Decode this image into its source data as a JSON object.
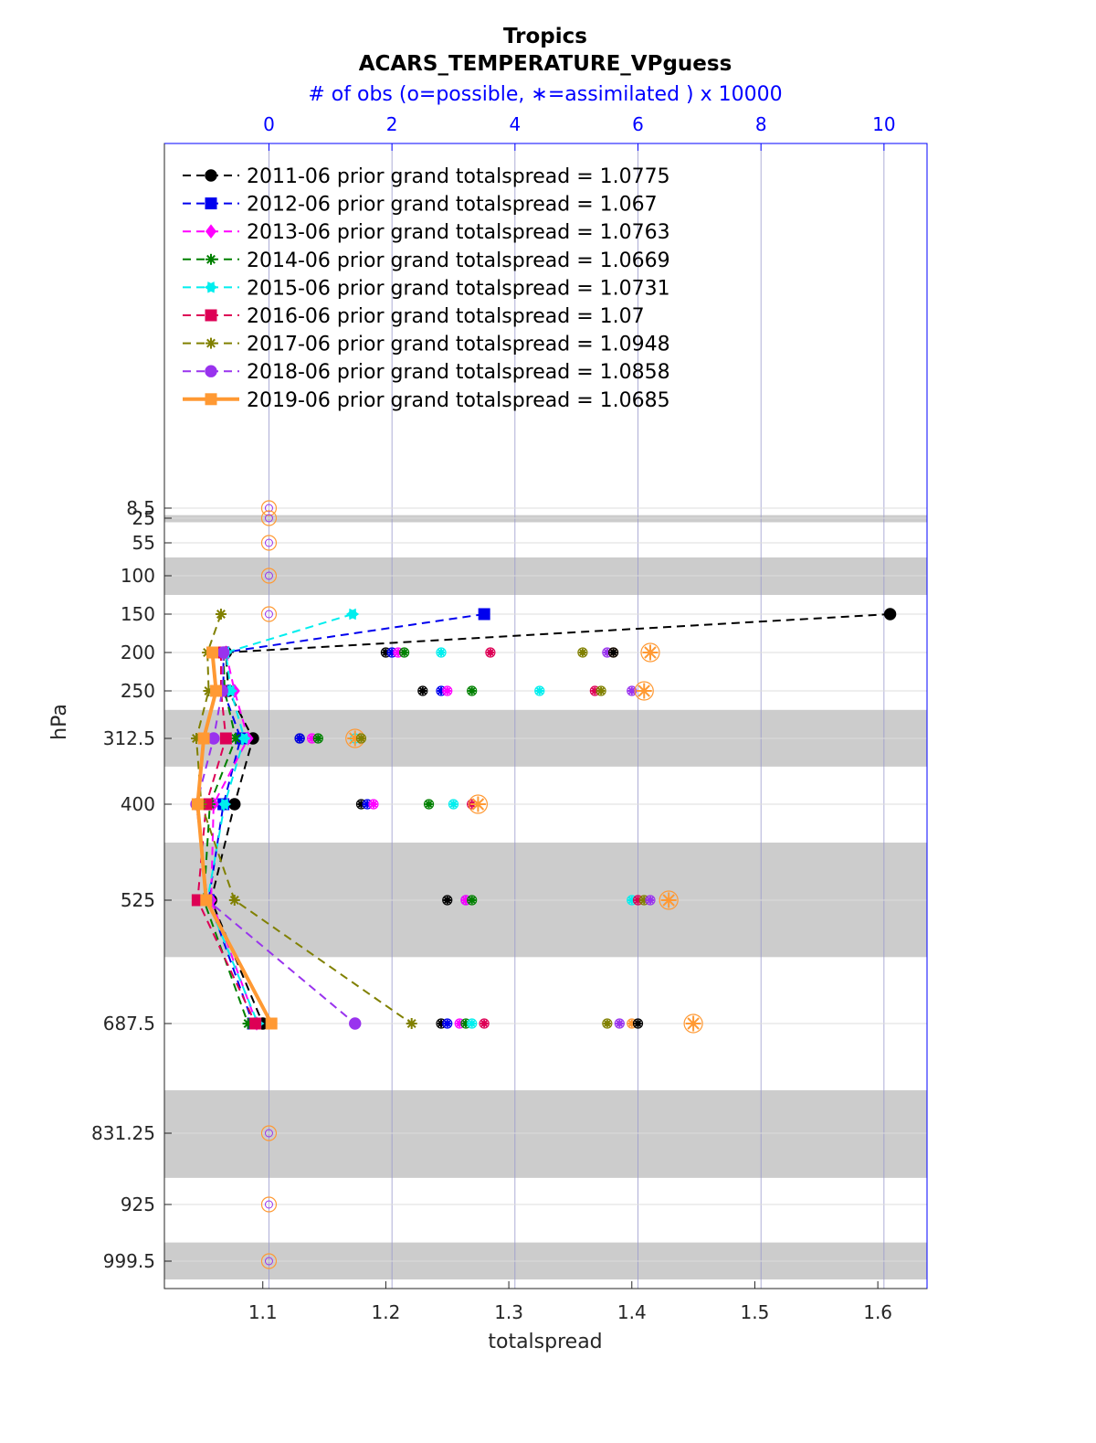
{
  "chart_data": {
    "type": "line",
    "title": "Tropics",
    "subtitle": "ACARS_TEMPERATURE_VPguess",
    "top_axis_label": "# of obs (o=possible, ∗=assimilated ) x 10000",
    "xlabel": "totalspread",
    "ylabel": "hPa",
    "xlim": [
      1.02,
      1.64
    ],
    "xticks": [
      1.1,
      1.2,
      1.3,
      1.4,
      1.5,
      1.6
    ],
    "xtick_labels": [
      "1.1",
      "1.2",
      "1.3",
      "1.4",
      "1.5",
      "1.6"
    ],
    "top_xlim": [
      -1.7,
      10.7
    ],
    "top_xticks": [
      0,
      2,
      4,
      6,
      8,
      10
    ],
    "top_xtick_labels": [
      "0",
      "2",
      "4",
      "6",
      "8",
      "10"
    ],
    "ylevels": [
      8.5,
      25,
      55,
      100,
      150,
      200,
      250,
      312.5,
      400,
      525,
      687.5,
      831.25,
      925,
      999.5
    ],
    "ytick_labels": [
      "8.5",
      "25",
      "55",
      "100",
      "150",
      "200",
      "250",
      "312.5",
      "400",
      "525",
      "687.5",
      "831.25",
      "925",
      "999.5"
    ],
    "shaded_bands": [
      [
        20,
        30
      ],
      [
        75,
        125
      ],
      [
        275,
        350
      ],
      [
        450,
        600
      ],
      [
        775,
        890
      ],
      [
        975,
        1050
      ]
    ],
    "plevels_data": [
      150,
      200,
      250,
      312.5,
      400,
      525,
      687.5
    ],
    "legend_position": "top-left",
    "series": [
      {
        "name": "2011-06",
        "label": "2011-06 prior grand totalspread = 1.0775",
        "color": "#000000",
        "marker": "circle",
        "linestyle": "dashed",
        "width": 2,
        "values": [
          1.61,
          1.07,
          1.072,
          1.092,
          1.077,
          1.058,
          1.1
        ]
      },
      {
        "name": "2012-06",
        "label": "2012-06 prior grand totalspread = 1.067",
        "color": "#0000ee",
        "marker": "square",
        "linestyle": "dashed",
        "width": 2,
        "values": [
          1.28,
          1.068,
          1.068,
          1.082,
          1.068,
          1.056,
          1.092
        ]
      },
      {
        "name": "2013-06",
        "label": "2013-06 prior grand totalspread = 1.0763",
        "color": "#ff00ff",
        "marker": "diamond",
        "linestyle": "dashed",
        "width": 2,
        "values": null,
        "values_partial": [
          null,
          1.07,
          1.077,
          1.088,
          1.06,
          1.058,
          1.095
        ]
      },
      {
        "name": "2014-06",
        "label": "2014-06 prior grand totalspread = 1.0669",
        "color": "#008000",
        "marker": "star",
        "linestyle": "dashed",
        "width": 2,
        "values": null,
        "values_partial": [
          null,
          1.068,
          1.069,
          1.078,
          1.057,
          1.052,
          1.088
        ]
      },
      {
        "name": "2015-06",
        "label": "2015-06 prior grand totalspread = 1.0731",
        "color": "#00eeee",
        "marker": "hexagram",
        "linestyle": "dashed",
        "width": 2,
        "values": [
          1.173,
          1.07,
          1.074,
          1.085,
          1.069,
          1.055,
          1.096
        ]
      },
      {
        "name": "2016-06",
        "label": "2016-06 prior grand totalspread = 1.07",
        "color": "#dd0055",
        "marker": "square",
        "linestyle": "dashed",
        "width": 2,
        "values": null,
        "values_partial": [
          null,
          1.066,
          1.066,
          1.07,
          1.054,
          1.047,
          1.094
        ]
      },
      {
        "name": "2017-06",
        "label": "2017-06 prior grand totalspread = 1.0948",
        "color": "#808000",
        "marker": "asterisk",
        "linestyle": "dashed",
        "width": 2,
        "values": [
          1.066,
          1.055,
          1.056,
          1.046,
          1.05,
          1.077,
          1.221
        ]
      },
      {
        "name": "2018-06",
        "label": "2018-06 prior grand totalspread = 1.0858",
        "color": "#9933ee",
        "marker": "circle",
        "linestyle": "dashed",
        "width": 2,
        "values": null,
        "values_partial": [
          null,
          1.068,
          1.067,
          1.06,
          1.046,
          1.055,
          1.175
        ]
      },
      {
        "name": "2019-06",
        "label": "2019-06 prior grand totalspread = 1.0685",
        "color": "#ff9933",
        "marker": "square",
        "linestyle": "solid",
        "width": 4,
        "values": null,
        "values_partial": [
          null,
          1.059,
          1.062,
          1.052,
          1.047,
          1.054,
          1.107
        ]
      }
    ],
    "obs_counts": {
      "note": "top-axis units (x 10000); o = possible, * = assimilated, plotted at each level",
      "levels": [
        8.5,
        25,
        55,
        100,
        150,
        831.25,
        925,
        999.5
      ],
      "possible_at_zero_levels": true,
      "nonzero": [
        {
          "level": 200,
          "values": [
            1.9,
            2.0,
            2.1,
            2.2,
            2.8,
            3.6,
            5.1,
            5.5,
            5.6,
            5.6,
            6.2
          ]
        },
        {
          "level": 250,
          "values": [
            2.5,
            2.8,
            2.9,
            3.3,
            4.4,
            5.3,
            5.4,
            5.9,
            6.1
          ]
        },
        {
          "level": 312.5,
          "values": [
            0.5,
            0.5,
            0.7,
            0.8,
            1.4,
            1.4,
            1.5
          ]
        },
        {
          "level": 400,
          "values": [
            1.5,
            1.6,
            1.7,
            2.6,
            3.0,
            3.3,
            3.4
          ]
        },
        {
          "level": 525,
          "values": [
            2.9,
            3.2,
            3.2,
            3.3,
            5.9,
            6.0,
            6.1,
            6.2,
            6.5
          ]
        },
        {
          "level": 687.5,
          "values": [
            2.8,
            2.9,
            3.1,
            3.2,
            3.3,
            3.5,
            5.5,
            5.7,
            5.9,
            6.0,
            6.9
          ]
        }
      ]
    }
  }
}
